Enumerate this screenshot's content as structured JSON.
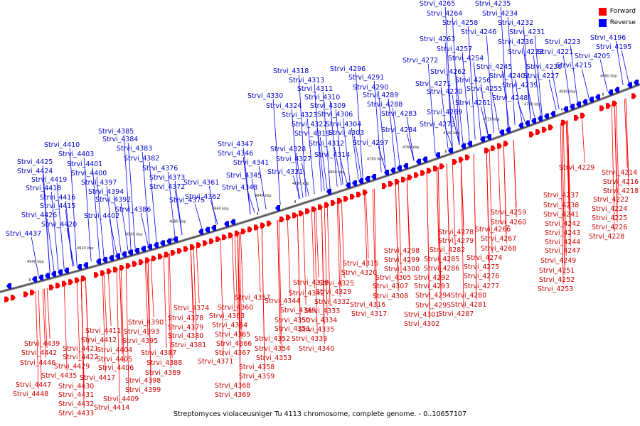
{
  "legend": {
    "items": [
      {
        "label": "Forward",
        "color": "#ff0000"
      },
      {
        "label": "Reverse",
        "color": "#0000ff"
      }
    ]
  },
  "caption": "Streptomyces violaceusniger Tu 4113 chromosome, complete genome. - 0..10657107",
  "colors": {
    "forward": "#ff0000",
    "reverse": "#0000ff",
    "label_forward": "#cc0000",
    "label_reverse": "#0000cc",
    "axis": "#888888"
  },
  "ticks": [
    "4660 kbp",
    "4680 kbp",
    "4700 kbp",
    "4720 kbp",
    "4740 kbp",
    "4760 kbp",
    "4780 kbp",
    "4800 kbp",
    "4820 kbp",
    "4840 kbp",
    "4860 kbp",
    "4880 kbp",
    "4900 kbp",
    "4920 kbp",
    "4940 kbp"
  ],
  "reverse_labels": [
    "Strvi_4265",
    "Strvi_4235",
    "Strvi_4264",
    "Strvi_4234",
    "Strvi_4258",
    "Strvi_4232",
    "Strvi_4246",
    "Strvi_4231",
    "Strvi_4263",
    "Strvi_4236",
    "Strvi_4223",
    "Strvi_4196",
    "Strvi_4257",
    "Strvi_4233",
    "Strvi_4221",
    "Strvi_4195",
    "Strvi_4254",
    "Strvi_4205",
    "Strvi_4272",
    "Strvi_4245",
    "Strvi_4230",
    "Strvi_4215",
    "Strvi_4262",
    "Strvi_4240",
    "Strvi_4227",
    "Strvi_4256",
    "Strvi_4239",
    "Strvi_4271",
    "Strvi_4255",
    "Strvi_4270",
    "Strvi_4248",
    "Strvi_4261",
    "Strvi_4269",
    "Strvi_4273",
    "Strvi_4318",
    "Strvi_4296",
    "Strvi_4313",
    "Strvi_4291",
    "Strvi_4311",
    "Strvi_4290",
    "Strvi_4330",
    "Strvi_4310",
    "Strvi_4289",
    "Strvi_4324",
    "Strvi_4309",
    "Strvi_4288",
    "Strvi_4323",
    "Strvi_4306",
    "Strvi_4283",
    "Strvi_4322",
    "Strvi_4304",
    "Strvi_4284",
    "Strvi_4319",
    "Strvi_4303",
    "Strvi_4312",
    "Strvi_4297",
    "Strvi_4328",
    "Strvi_4314",
    "Strvi_4327",
    "Strvi_4331",
    "Strvi_4385",
    "Strvi_4384",
    "Strvi_4383",
    "Strvi_4410",
    "Strvi_4403",
    "Strvi_4382",
    "Strvi_4425",
    "Strvi_4401",
    "Strvi_4376",
    "Strvi_4424",
    "Strvi_4400",
    "Strvi_4373",
    "Strvi_4419",
    "Strvi_4397",
    "Strvi_4372",
    "Strvi_4418",
    "Strvi_4394",
    "Strvi_4416",
    "Strvi_4392",
    "Strvi_4375",
    "Strvi_4415",
    "Strvi_4386",
    "Strvi_4426",
    "Strvi_4402",
    "Strvi_4420",
    "Strvi_4437",
    "Strvi_4347",
    "Strvi_4346",
    "Strvi_4341",
    "Strvi_4345",
    "Strvi_4361",
    "Strvi_4348",
    "Strvi_4362"
  ],
  "forward_labels": [
    "Strvi_4229",
    "Strvi_4214",
    "Strvi_4216",
    "Strvi_4218",
    "Strvi_4237",
    "Strvi_4222",
    "Strvi_4238",
    "Strvi_4224",
    "Strvi_4241",
    "Strvi_4225",
    "Strvi_4259",
    "Strvi_4242",
    "Strvi_4226",
    "Strvi_4260",
    "Strvi_4228",
    "Strvi_4266",
    "Strvi_4243",
    "Strvi_4278",
    "Strvi_4267",
    "Strvi_4244",
    "Strvi_4279",
    "Strvi_4268",
    "Strvi_4247",
    "Strvi_4282",
    "Strvi_4274",
    "Strvi_4249",
    "Strvi_4285",
    "Strvi_4275",
    "Strvi_4251",
    "Strvi_4286",
    "Strvi_4276",
    "Strvi_4252",
    "Strvi_4277",
    "Strvi_4253",
    "Strvi_4280",
    "Strvi_4281",
    "Strvi_4287",
    "Strvi_4298",
    "Strvi_4299",
    "Strvi_4300",
    "Strvi_4305",
    "Strvi_4292",
    "Strvi_4293",
    "Strvi_4294",
    "Strvi_4295",
    "Strvi_4301",
    "Strvi_4302",
    "Strvi_4315",
    "Strvi_4320",
    "Strvi_4307",
    "Strvi_4308",
    "Strvi_4316",
    "Strvi_4317",
    "Strvi_4325",
    "Strvi_4329",
    "Strvi_4332",
    "Strvi_4333",
    "Strvi_4334",
    "Strvi_4335",
    "Strvi_4338",
    "Strvi_4342",
    "Strvi_4344",
    "Strvi_4349",
    "Strvi_4350",
    "Strvi_4351",
    "Strvi_4339",
    "Strvi_4340",
    "Strvi_4352",
    "Strvi_4354",
    "Strvi_4353",
    "Strvi_4357",
    "Strvi_4360",
    "Strvi_4363",
    "Strvi_4364",
    "Strvi_4365",
    "Strvi_4366",
    "Strvi_4367",
    "Strvi_4371",
    "Strvi_4358",
    "Strvi_4359",
    "Strvi_4368",
    "Strvi_4369",
    "Strvi_4374",
    "Strvi_4378",
    "Strvi_4379",
    "Strvi_4380",
    "Strvi_4381",
    "Strvi_4390",
    "Strvi_4393",
    "Strvi_4395",
    "Strvi_4387",
    "Strvi_4388",
    "Strvi_4389",
    "Strvi_4398",
    "Strvi_4399",
    "Strvi_4411",
    "Strvi_4412",
    "Strvi_4404",
    "Strvi_4405",
    "Strvi_4406",
    "Strvi_4421",
    "Strvi_4422",
    "Strvi_4417",
    "Strvi_4409",
    "Strvi_4414",
    "Strvi_4439",
    "Strvi_4442",
    "Strvi_4446",
    "Strvi_4429",
    "Strvi_4435",
    "Strvi_4430",
    "Strvi_4431",
    "Strvi_4432",
    "Strvi_4433",
    "Strvi_4447",
    "Strvi_4448"
  ]
}
